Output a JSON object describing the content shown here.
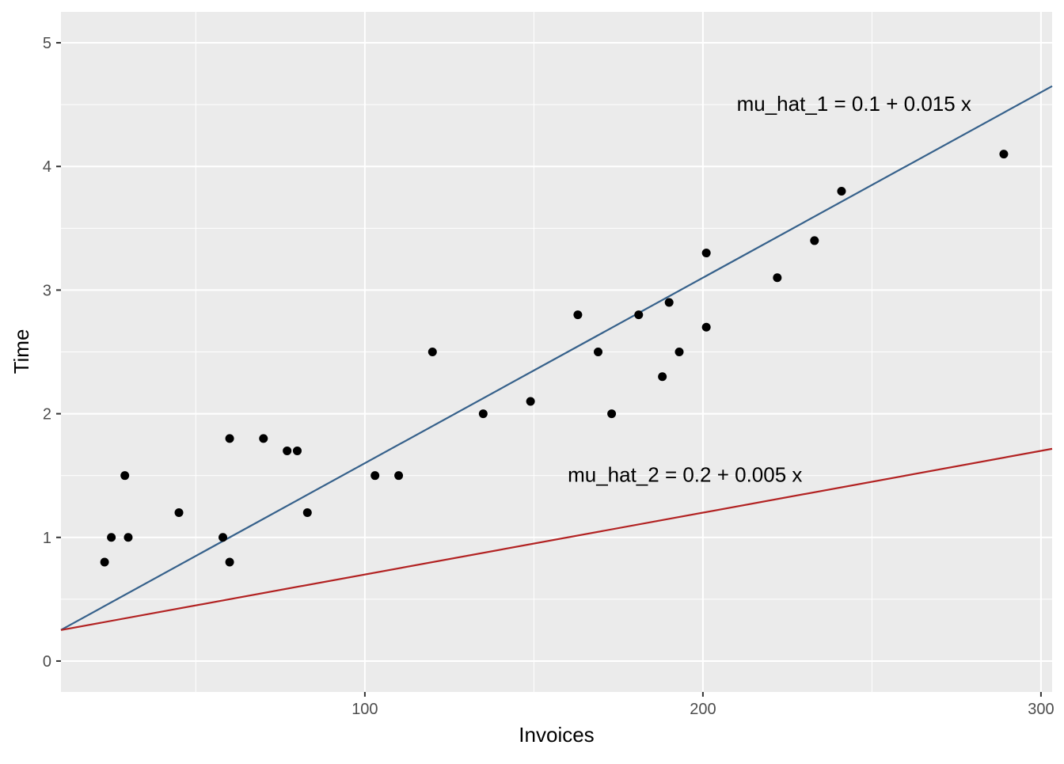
{
  "chart_data": {
    "type": "scatter",
    "title": "",
    "xlabel": "Invoices",
    "ylabel": "Time",
    "xlim": [
      10.1,
      303.3
    ],
    "ylim": [
      -0.25,
      5.25
    ],
    "x_ticks": [
      100,
      200,
      300
    ],
    "x_minor_ticks": [
      50,
      150,
      250
    ],
    "y_ticks": [
      0,
      1,
      2,
      3,
      4,
      5
    ],
    "y_minor_ticks": [
      0.5,
      1.5,
      2.5,
      3.5,
      4.5
    ],
    "grid": true,
    "panel_background": "#ebebeb",
    "grid_color": "#ffffff",
    "point_color": "#000000",
    "points": [
      {
        "x": 23,
        "y": 0.8
      },
      {
        "x": 25,
        "y": 1.0
      },
      {
        "x": 29,
        "y": 1.5
      },
      {
        "x": 30,
        "y": 1.0
      },
      {
        "x": 45,
        "y": 1.2
      },
      {
        "x": 58,
        "y": 1.0
      },
      {
        "x": 60,
        "y": 0.8
      },
      {
        "x": 60,
        "y": 1.8
      },
      {
        "x": 70,
        "y": 1.8
      },
      {
        "x": 77,
        "y": 1.7
      },
      {
        "x": 80,
        "y": 1.7
      },
      {
        "x": 83,
        "y": 1.2
      },
      {
        "x": 103,
        "y": 1.5
      },
      {
        "x": 110,
        "y": 1.5
      },
      {
        "x": 120,
        "y": 2.5
      },
      {
        "x": 135,
        "y": 2.0
      },
      {
        "x": 149,
        "y": 2.1
      },
      {
        "x": 163,
        "y": 2.8
      },
      {
        "x": 169,
        "y": 2.5
      },
      {
        "x": 173,
        "y": 2.0
      },
      {
        "x": 181,
        "y": 2.8
      },
      {
        "x": 188,
        "y": 2.3
      },
      {
        "x": 190,
        "y": 2.9
      },
      {
        "x": 193,
        "y": 2.5
      },
      {
        "x": 201,
        "y": 3.3
      },
      {
        "x": 201,
        "y": 2.7
      },
      {
        "x": 222,
        "y": 3.1
      },
      {
        "x": 233,
        "y": 3.4
      },
      {
        "x": 241,
        "y": 3.8
      },
      {
        "x": 289,
        "y": 4.1
      }
    ],
    "lines": [
      {
        "label": "mu_hat_1 = 0.1 + 0.015 x",
        "intercept": 0.1,
        "slope": 0.015,
        "color": "#36618b",
        "label_x": 210,
        "label_y": 4.45
      },
      {
        "label": "mu_hat_2 = 0.2 + 0.005 x",
        "intercept": 0.2,
        "slope": 0.005,
        "color": "#b22222",
        "label_x": 160,
        "label_y": 1.45
      }
    ]
  }
}
